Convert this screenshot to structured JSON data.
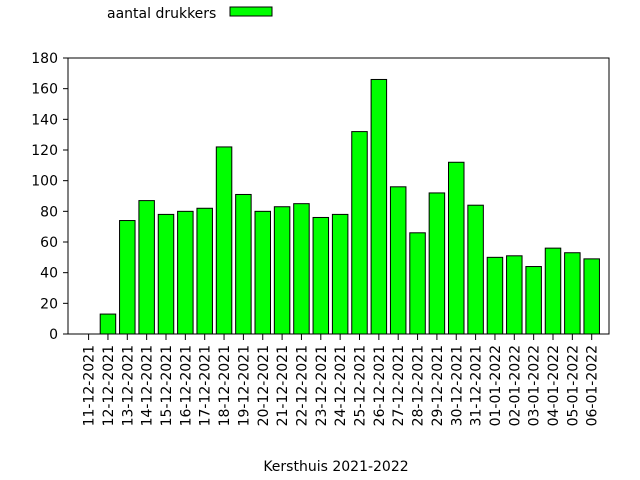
{
  "chart_data": {
    "type": "bar",
    "xlabel": "Kersthuis 2021-2022",
    "ylabel": "",
    "ylim": [
      0,
      180
    ],
    "yticks": [
      0,
      20,
      40,
      60,
      80,
      100,
      120,
      140,
      160,
      180
    ],
    "grid": false,
    "legend_position": "top-left",
    "categories": [
      "11-12-2021",
      "12-12-2021",
      "13-12-2021",
      "14-12-2021",
      "15-12-2021",
      "16-12-2021",
      "17-12-2021",
      "18-12-2021",
      "19-12-2021",
      "20-12-2021",
      "21-12-2021",
      "22-12-2021",
      "23-12-2021",
      "24-12-2021",
      "25-12-2021",
      "26-12-2021",
      "27-12-2021",
      "28-12-2021",
      "29-12-2021",
      "30-12-2021",
      "31-12-2021",
      "01-01-2022",
      "02-01-2022",
      "03-01-2022",
      "04-01-2022",
      "05-01-2022",
      "06-01-2022"
    ],
    "series": [
      {
        "name": "aantal drukkers",
        "color": "#00ff00",
        "values": [
          0,
          13,
          74,
          87,
          78,
          80,
          82,
          122,
          91,
          80,
          83,
          85,
          76,
          78,
          132,
          166,
          96,
          66,
          92,
          112,
          84,
          50,
          51,
          44,
          56,
          53,
          49
        ]
      }
    ]
  }
}
